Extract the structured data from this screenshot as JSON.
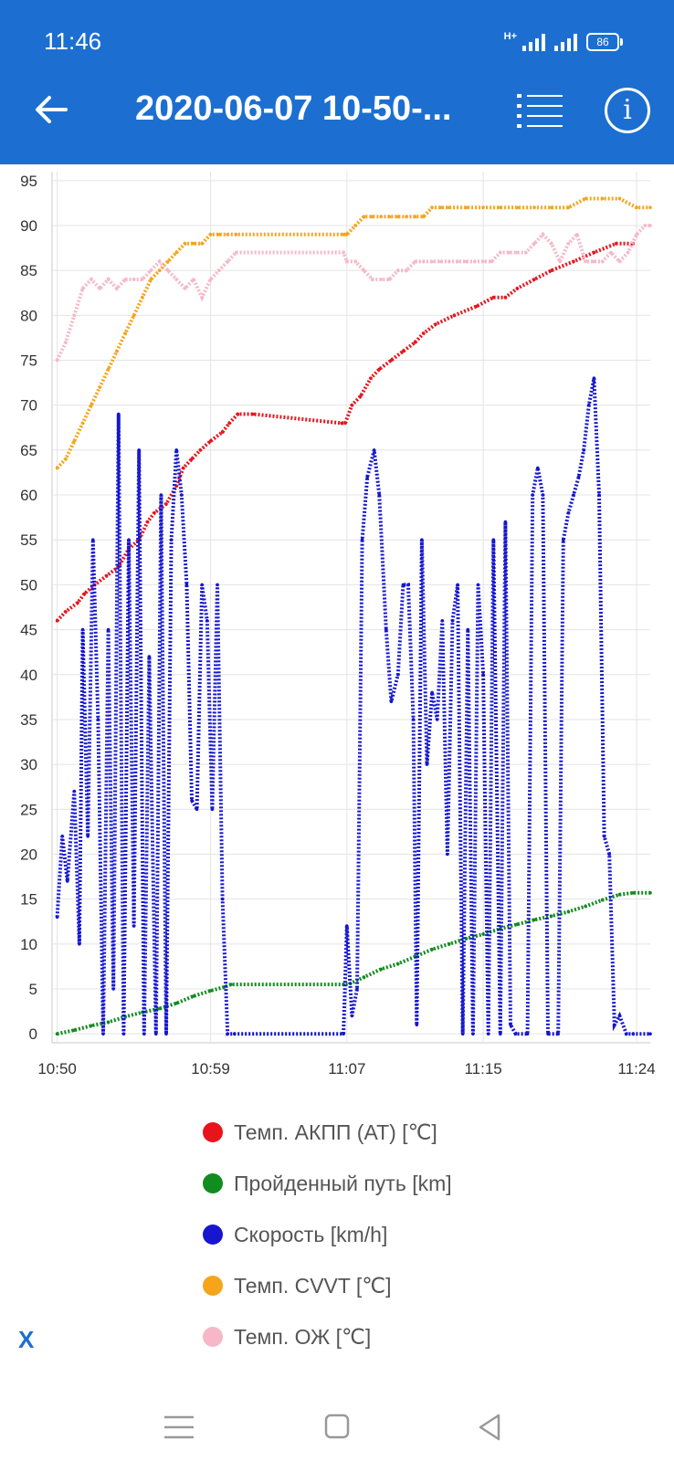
{
  "status": {
    "time": "11:46",
    "network": "H+",
    "battery": "86"
  },
  "header": {
    "title": "2020-06-07 10-50-...",
    "back_icon": "arrow-left-icon",
    "list_icon": "list-icon",
    "info_icon": "info-icon"
  },
  "close_label": "X",
  "colors": {
    "appbar": "#1c6fd1"
  },
  "chart_data": {
    "type": "line",
    "x_ticks": [
      "10:50",
      "10:59",
      "11:07",
      "11:15",
      "11:24"
    ],
    "x_tick_minutes": [
      0,
      9,
      17,
      25,
      34
    ],
    "xlim_minutes": [
      -0.3,
      34.8
    ],
    "y_ticks": [
      0,
      5,
      10,
      15,
      20,
      25,
      30,
      35,
      40,
      45,
      50,
      55,
      60,
      65,
      70,
      75,
      80,
      85,
      90,
      95
    ],
    "ylim": [
      -1,
      96
    ],
    "grid": true,
    "legend_position": "bottom",
    "series": [
      {
        "name": "Темп. АКПП (AT) [℃]",
        "color": "#e8141c",
        "points_minutes": [
          [
            0,
            46
          ],
          [
            0.5,
            47
          ],
          [
            1.2,
            48
          ],
          [
            1.6,
            49
          ],
          [
            2.2,
            50
          ],
          [
            2.9,
            51
          ],
          [
            3.6,
            52
          ],
          [
            4.2,
            54
          ],
          [
            4.8,
            55
          ],
          [
            5.3,
            57
          ],
          [
            5.7,
            58
          ],
          [
            6.4,
            59
          ],
          [
            7.0,
            61
          ],
          [
            7.4,
            63
          ],
          [
            7.9,
            64
          ],
          [
            8.4,
            65
          ],
          [
            9.0,
            66
          ],
          [
            9.7,
            67
          ],
          [
            10.1,
            68
          ],
          [
            10.6,
            69
          ],
          [
            11.5,
            69
          ],
          [
            16.7,
            68
          ],
          [
            16.9,
            68
          ],
          [
            17.3,
            70
          ],
          [
            17.8,
            71
          ],
          [
            18.4,
            73
          ],
          [
            18.9,
            74
          ],
          [
            19.6,
            75
          ],
          [
            20.3,
            76
          ],
          [
            21.0,
            77
          ],
          [
            21.5,
            78
          ],
          [
            22.2,
            79
          ],
          [
            23.3,
            80
          ],
          [
            24.6,
            81
          ],
          [
            25.6,
            82
          ],
          [
            26.3,
            82
          ],
          [
            27.0,
            83
          ],
          [
            28.0,
            84
          ],
          [
            29.0,
            85
          ],
          [
            30.3,
            86
          ],
          [
            31.5,
            87
          ],
          [
            32.8,
            88
          ],
          [
            33.8,
            88
          ]
        ]
      },
      {
        "name": "Пройденный путь [km]",
        "color": "#118c1e",
        "points_minutes": [
          [
            0,
            0
          ],
          [
            1,
            0.4
          ],
          [
            2,
            0.9
          ],
          [
            3,
            1.3
          ],
          [
            4,
            1.9
          ],
          [
            5,
            2.4
          ],
          [
            6,
            2.8
          ],
          [
            7,
            3.4
          ],
          [
            8,
            4.2
          ],
          [
            9,
            4.8
          ],
          [
            9.8,
            5.2
          ],
          [
            10.2,
            5.5
          ],
          [
            16.8,
            5.5
          ],
          [
            17.2,
            5.6
          ],
          [
            18,
            6.3
          ],
          [
            19,
            7.2
          ],
          [
            20,
            7.8
          ],
          [
            21,
            8.6
          ],
          [
            22,
            9.4
          ],
          [
            23,
            10
          ],
          [
            24,
            10.6
          ],
          [
            25,
            11.1
          ],
          [
            26,
            11.7
          ],
          [
            27,
            12.2
          ],
          [
            28,
            12.7
          ],
          [
            29,
            13.1
          ],
          [
            30,
            13.6
          ],
          [
            31,
            14.2
          ],
          [
            32,
            14.9
          ],
          [
            33,
            15.5
          ],
          [
            33.8,
            15.7
          ],
          [
            34.8,
            15.7
          ]
        ]
      },
      {
        "name": "Скорость [km/h]",
        "color": "#1616d0",
        "points_minutes": [
          [
            0,
            13
          ],
          [
            0.3,
            22
          ],
          [
            0.6,
            17
          ],
          [
            1.0,
            27
          ],
          [
            1.3,
            10
          ],
          [
            1.5,
            45
          ],
          [
            1.8,
            22
          ],
          [
            2.1,
            55
          ],
          [
            2.4,
            35
          ],
          [
            2.7,
            0
          ],
          [
            3.0,
            45
          ],
          [
            3.3,
            5
          ],
          [
            3.6,
            69
          ],
          [
            3.9,
            0
          ],
          [
            4.2,
            55
          ],
          [
            4.5,
            12
          ],
          [
            4.8,
            65
          ],
          [
            5.1,
            0
          ],
          [
            5.4,
            42
          ],
          [
            5.8,
            0
          ],
          [
            6.1,
            60
          ],
          [
            6.4,
            0
          ],
          [
            6.7,
            55
          ],
          [
            7.0,
            65
          ],
          [
            7.3,
            60
          ],
          [
            7.6,
            50
          ],
          [
            7.9,
            26
          ],
          [
            8.2,
            25
          ],
          [
            8.5,
            50
          ],
          [
            8.8,
            46
          ],
          [
            9.1,
            25
          ],
          [
            9.4,
            50
          ],
          [
            9.7,
            15
          ],
          [
            10.0,
            0
          ],
          [
            10.4,
            0
          ],
          [
            16.8,
            0
          ],
          [
            17.0,
            12
          ],
          [
            17.3,
            2
          ],
          [
            17.6,
            5
          ],
          [
            17.9,
            55
          ],
          [
            18.2,
            62
          ],
          [
            18.6,
            65
          ],
          [
            18.9,
            60
          ],
          [
            19.3,
            45
          ],
          [
            19.6,
            37
          ],
          [
            20.0,
            40
          ],
          [
            20.3,
            50
          ],
          [
            20.6,
            50
          ],
          [
            20.9,
            35
          ],
          [
            21.1,
            1
          ],
          [
            21.4,
            55
          ],
          [
            21.7,
            30
          ],
          [
            22.0,
            38
          ],
          [
            22.3,
            35
          ],
          [
            22.6,
            46
          ],
          [
            22.9,
            20
          ],
          [
            23.2,
            46
          ],
          [
            23.5,
            50
          ],
          [
            23.8,
            0
          ],
          [
            24.1,
            45
          ],
          [
            24.4,
            0
          ],
          [
            24.7,
            50
          ],
          [
            25.0,
            40
          ],
          [
            25.3,
            0
          ],
          [
            25.6,
            55
          ],
          [
            26.0,
            0
          ],
          [
            26.3,
            57
          ],
          [
            26.6,
            1
          ],
          [
            26.9,
            0
          ],
          [
            27.6,
            0
          ],
          [
            27.9,
            60
          ],
          [
            28.2,
            63
          ],
          [
            28.5,
            60
          ],
          [
            28.8,
            0
          ],
          [
            29.4,
            0
          ],
          [
            29.7,
            55
          ],
          [
            30.0,
            58
          ],
          [
            30.3,
            60
          ],
          [
            30.6,
            62
          ],
          [
            30.9,
            65
          ],
          [
            31.2,
            70
          ],
          [
            31.5,
            73
          ],
          [
            31.8,
            60
          ],
          [
            32.1,
            22
          ],
          [
            32.4,
            20
          ],
          [
            32.7,
            1
          ],
          [
            33.0,
            2
          ],
          [
            33.4,
            0
          ],
          [
            33.8,
            0
          ],
          [
            34.8,
            0
          ]
        ]
      },
      {
        "name": "Темп. CVVT [℃]",
        "color": "#f6a51b",
        "points_minutes": [
          [
            0,
            63
          ],
          [
            0.5,
            64
          ],
          [
            1,
            66
          ],
          [
            1.5,
            68
          ],
          [
            2,
            70
          ],
          [
            2.5,
            72
          ],
          [
            3,
            74
          ],
          [
            3.5,
            76
          ],
          [
            4,
            78
          ],
          [
            4.5,
            80
          ],
          [
            5,
            82
          ],
          [
            5.5,
            84
          ],
          [
            6,
            85
          ],
          [
            6.5,
            86
          ],
          [
            7,
            87
          ],
          [
            7.5,
            88
          ],
          [
            8,
            88
          ],
          [
            8.5,
            88
          ],
          [
            9,
            89
          ],
          [
            9.5,
            89
          ],
          [
            10,
            89
          ],
          [
            10.5,
            89
          ],
          [
            16.8,
            89
          ],
          [
            17,
            89
          ],
          [
            17.5,
            90
          ],
          [
            18,
            91
          ],
          [
            18.5,
            91
          ],
          [
            19,
            91
          ],
          [
            19.5,
            91
          ],
          [
            20,
            91
          ],
          [
            20.5,
            91
          ],
          [
            21,
            91
          ],
          [
            21.5,
            91
          ],
          [
            22,
            92
          ],
          [
            22.5,
            92
          ],
          [
            23,
            92
          ],
          [
            24,
            92
          ],
          [
            25,
            92
          ],
          [
            26,
            92
          ],
          [
            27,
            92
          ],
          [
            28,
            92
          ],
          [
            29,
            92
          ],
          [
            30,
            92
          ],
          [
            31,
            93
          ],
          [
            32,
            93
          ],
          [
            33,
            93
          ],
          [
            34,
            92
          ],
          [
            34.8,
            92
          ]
        ]
      },
      {
        "name": "Темп. ОЖ [℃]",
        "color": "#f6b8c8",
        "points_minutes": [
          [
            0,
            75
          ],
          [
            0.5,
            77
          ],
          [
            1,
            80
          ],
          [
            1.5,
            83
          ],
          [
            2,
            84
          ],
          [
            2.5,
            83
          ],
          [
            3,
            84
          ],
          [
            3.5,
            83
          ],
          [
            4,
            84
          ],
          [
            4.5,
            84
          ],
          [
            5,
            84
          ],
          [
            5.5,
            85
          ],
          [
            6,
            86
          ],
          [
            6.5,
            85
          ],
          [
            7,
            84
          ],
          [
            7.5,
            83
          ],
          [
            8,
            84
          ],
          [
            8.5,
            82
          ],
          [
            9,
            84
          ],
          [
            9.5,
            85
          ],
          [
            10,
            86
          ],
          [
            10.5,
            87
          ],
          [
            16.8,
            87
          ],
          [
            17,
            86
          ],
          [
            17.5,
            86
          ],
          [
            18,
            85
          ],
          [
            18.5,
            84
          ],
          [
            19,
            84
          ],
          [
            19.5,
            84
          ],
          [
            20,
            85
          ],
          [
            20.5,
            85
          ],
          [
            21,
            86
          ],
          [
            21.5,
            86
          ],
          [
            22,
            86
          ],
          [
            22.5,
            86
          ],
          [
            23,
            86
          ],
          [
            23.5,
            86
          ],
          [
            24,
            86
          ],
          [
            24.5,
            86
          ],
          [
            25,
            86
          ],
          [
            25.5,
            86
          ],
          [
            26,
            87
          ],
          [
            26.5,
            87
          ],
          [
            27,
            87
          ],
          [
            27.5,
            87
          ],
          [
            28,
            88
          ],
          [
            28.5,
            89
          ],
          [
            29,
            88
          ],
          [
            29.5,
            86
          ],
          [
            30,
            88
          ],
          [
            30.5,
            89
          ],
          [
            31,
            86
          ],
          [
            31.5,
            86
          ],
          [
            32,
            86
          ],
          [
            32.5,
            87
          ],
          [
            33,
            86
          ],
          [
            33.5,
            87
          ],
          [
            34,
            89
          ],
          [
            34.5,
            90
          ],
          [
            34.8,
            90
          ]
        ]
      }
    ]
  }
}
